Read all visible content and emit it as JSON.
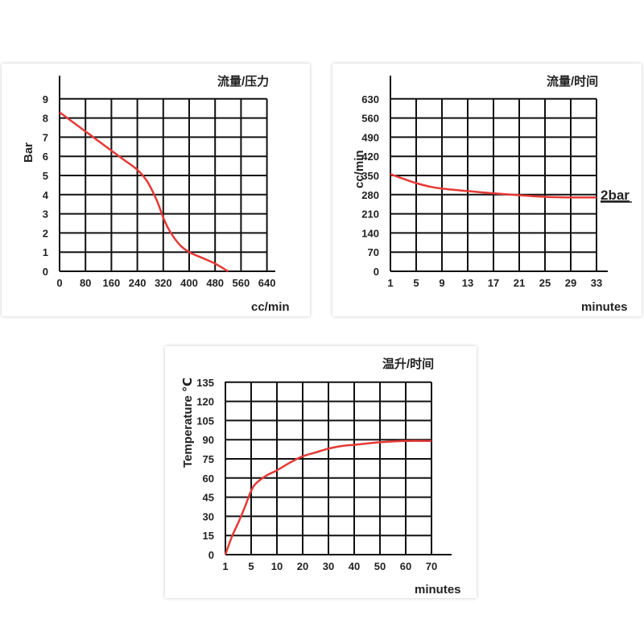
{
  "chart_data": [
    {
      "type": "line",
      "title": "流量/压力",
      "xlabel": "cc/min",
      "ylabel": "Bar",
      "x_ticks": [
        "0",
        "80",
        "160",
        "240",
        "320",
        "400",
        "480",
        "560",
        "640"
      ],
      "y_ticks": [
        "0",
        "1",
        "2",
        "3",
        "4",
        "5",
        "6",
        "7",
        "8",
        "9"
      ],
      "xlim": [
        0,
        640
      ],
      "ylim": [
        0,
        9
      ],
      "grid": true,
      "series": [
        {
          "x": [
            0,
            40,
            80,
            120,
            160,
            200,
            240,
            270,
            300,
            320,
            340,
            370,
            400,
            440,
            480,
            520
          ],
          "y": [
            8.3,
            7.8,
            7.3,
            6.8,
            6.3,
            5.8,
            5.3,
            4.7,
            3.7,
            2.8,
            2.1,
            1.4,
            1.0,
            0.7,
            0.4,
            0.0
          ]
        }
      ],
      "colors": [
        "#e53935"
      ]
    },
    {
      "type": "line",
      "title": "流量/时间",
      "xlabel": "minutes",
      "ylabel": "cc/min",
      "x_ticks": [
        "1",
        "5",
        "9",
        "13",
        "17",
        "21",
        "25",
        "29",
        "33"
      ],
      "y_ticks": [
        "0",
        "70",
        "140",
        "210",
        "280",
        "350",
        "420",
        "490",
        "560",
        "630"
      ],
      "xlim": [
        1,
        33
      ],
      "ylim": [
        0,
        630
      ],
      "grid": true,
      "annotation": "2bar",
      "series": [
        {
          "x": [
            1,
            3,
            5,
            7,
            9,
            13,
            17,
            21,
            25,
            29,
            33
          ],
          "y": [
            355,
            338,
            322,
            310,
            302,
            293,
            285,
            278,
            272,
            270,
            270
          ]
        }
      ],
      "colors": [
        "#e53935"
      ]
    },
    {
      "type": "line",
      "title": "温升/时间",
      "xlabel": "minutes",
      "ylabel": "Temperature ℃",
      "x_ticks": [
        "1",
        "5",
        "10",
        "20",
        "30",
        "40",
        "50",
        "60",
        "70"
      ],
      "y_ticks": [
        "0",
        "15",
        "30",
        "45",
        "60",
        "75",
        "90",
        "105",
        "120",
        "135"
      ],
      "ylim": [
        0,
        135
      ],
      "grid": true,
      "series": [
        {
          "x": [
            1,
            2,
            3,
            4,
            5,
            6,
            8,
            10,
            15,
            20,
            25,
            30,
            35,
            40,
            50,
            60,
            70
          ],
          "y": [
            0,
            14,
            25,
            37,
            50,
            56,
            62,
            66,
            72,
            77,
            80,
            83,
            85,
            86,
            88,
            89,
            89
          ]
        }
      ],
      "colors": [
        "#e53935"
      ]
    }
  ]
}
